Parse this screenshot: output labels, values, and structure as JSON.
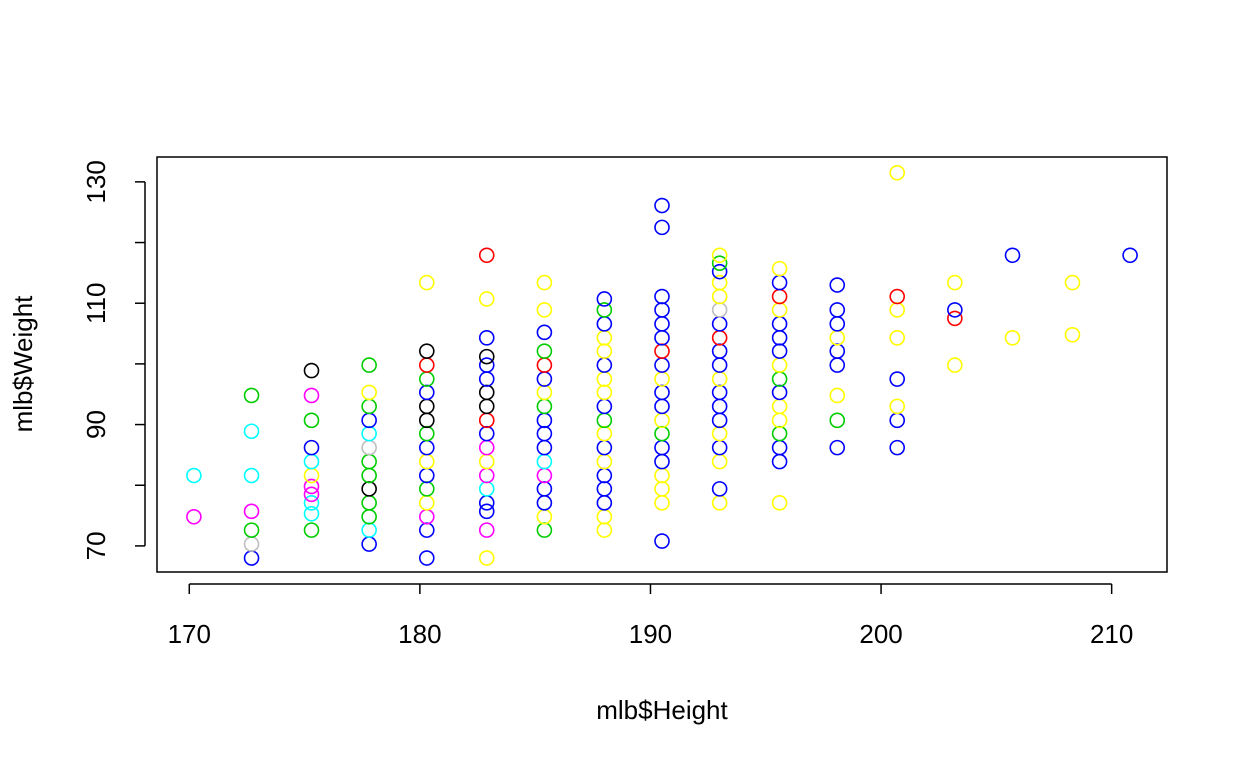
{
  "chart_data": {
    "type": "scatter",
    "title": "",
    "xlabel": "mlb$Height",
    "ylabel": "mlb$Weight",
    "xlim": [
      168.6,
      212.4
    ],
    "ylim": [
      65.7,
      134.1
    ],
    "x_ticks": [
      "170",
      "180",
      "190",
      "200",
      "210"
    ],
    "y_ticks": [
      "70",
      "90",
      "110",
      "130"
    ],
    "y_tick_marks": [
      70,
      80,
      90,
      100,
      110,
      120,
      130
    ],
    "grid": false,
    "legend": "none",
    "colors": {
      "black": "#000000",
      "red": "#ff0000",
      "green": "#00cd00",
      "blue": "#0000ff",
      "cyan": "#00ffff",
      "magenta": "#ff00ff",
      "yellow": "#ffff00",
      "gray": "#bebebe"
    },
    "points": [
      {
        "x": 170.2,
        "y": 74.8,
        "c": "magenta"
      },
      {
        "x": 170.2,
        "y": 81.6,
        "c": "cyan"
      },
      {
        "x": 172.7,
        "y": 68.0,
        "c": "blue"
      },
      {
        "x": 172.7,
        "y": 70.3,
        "c": "gray"
      },
      {
        "x": 172.7,
        "y": 72.6,
        "c": "green"
      },
      {
        "x": 172.7,
        "y": 75.7,
        "c": "magenta"
      },
      {
        "x": 172.7,
        "y": 81.6,
        "c": "cyan"
      },
      {
        "x": 172.7,
        "y": 88.9,
        "c": "cyan"
      },
      {
        "x": 172.7,
        "y": 94.8,
        "c": "green"
      },
      {
        "x": 175.3,
        "y": 72.6,
        "c": "green"
      },
      {
        "x": 175.3,
        "y": 75.3,
        "c": "cyan"
      },
      {
        "x": 175.3,
        "y": 77.1,
        "c": "cyan"
      },
      {
        "x": 175.3,
        "y": 78.5,
        "c": "magenta"
      },
      {
        "x": 175.3,
        "y": 79.8,
        "c": "magenta"
      },
      {
        "x": 175.3,
        "y": 81.6,
        "c": "yellow"
      },
      {
        "x": 175.3,
        "y": 83.9,
        "c": "cyan"
      },
      {
        "x": 175.3,
        "y": 86.2,
        "c": "blue"
      },
      {
        "x": 175.3,
        "y": 90.7,
        "c": "green"
      },
      {
        "x": 175.3,
        "y": 94.8,
        "c": "magenta"
      },
      {
        "x": 175.3,
        "y": 98.9,
        "c": "black"
      },
      {
        "x": 177.8,
        "y": 70.3,
        "c": "blue"
      },
      {
        "x": 177.8,
        "y": 72.6,
        "c": "cyan"
      },
      {
        "x": 177.8,
        "y": 74.8,
        "c": "green"
      },
      {
        "x": 177.8,
        "y": 77.1,
        "c": "green"
      },
      {
        "x": 177.8,
        "y": 79.4,
        "c": "black"
      },
      {
        "x": 177.8,
        "y": 81.6,
        "c": "green"
      },
      {
        "x": 177.8,
        "y": 83.9,
        "c": "green"
      },
      {
        "x": 177.8,
        "y": 86.2,
        "c": "gray"
      },
      {
        "x": 177.8,
        "y": 88.5,
        "c": "cyan"
      },
      {
        "x": 177.8,
        "y": 90.7,
        "c": "blue"
      },
      {
        "x": 177.8,
        "y": 93.0,
        "c": "green"
      },
      {
        "x": 177.8,
        "y": 95.3,
        "c": "yellow"
      },
      {
        "x": 177.8,
        "y": 99.8,
        "c": "green"
      },
      {
        "x": 180.3,
        "y": 68.0,
        "c": "blue"
      },
      {
        "x": 180.3,
        "y": 72.6,
        "c": "blue"
      },
      {
        "x": 180.3,
        "y": 74.8,
        "c": "magenta"
      },
      {
        "x": 180.3,
        "y": 77.1,
        "c": "yellow"
      },
      {
        "x": 180.3,
        "y": 79.4,
        "c": "green"
      },
      {
        "x": 180.3,
        "y": 81.6,
        "c": "blue"
      },
      {
        "x": 180.3,
        "y": 83.9,
        "c": "yellow"
      },
      {
        "x": 180.3,
        "y": 86.2,
        "c": "blue"
      },
      {
        "x": 180.3,
        "y": 88.5,
        "c": "green"
      },
      {
        "x": 180.3,
        "y": 90.7,
        "c": "black"
      },
      {
        "x": 180.3,
        "y": 93.0,
        "c": "black"
      },
      {
        "x": 180.3,
        "y": 95.3,
        "c": "blue"
      },
      {
        "x": 180.3,
        "y": 97.5,
        "c": "green"
      },
      {
        "x": 180.3,
        "y": 99.8,
        "c": "red"
      },
      {
        "x": 180.3,
        "y": 102.1,
        "c": "black"
      },
      {
        "x": 180.3,
        "y": 113.4,
        "c": "yellow"
      },
      {
        "x": 182.9,
        "y": 68.0,
        "c": "yellow"
      },
      {
        "x": 182.9,
        "y": 72.6,
        "c": "magenta"
      },
      {
        "x": 182.9,
        "y": 75.7,
        "c": "blue"
      },
      {
        "x": 182.9,
        "y": 77.1,
        "c": "blue"
      },
      {
        "x": 182.9,
        "y": 79.4,
        "c": "cyan"
      },
      {
        "x": 182.9,
        "y": 81.6,
        "c": "magenta"
      },
      {
        "x": 182.9,
        "y": 83.9,
        "c": "yellow"
      },
      {
        "x": 182.9,
        "y": 86.2,
        "c": "magenta"
      },
      {
        "x": 182.9,
        "y": 88.5,
        "c": "blue"
      },
      {
        "x": 182.9,
        "y": 90.7,
        "c": "red"
      },
      {
        "x": 182.9,
        "y": 93.0,
        "c": "black"
      },
      {
        "x": 182.9,
        "y": 95.3,
        "c": "black"
      },
      {
        "x": 182.9,
        "y": 97.5,
        "c": "blue"
      },
      {
        "x": 182.9,
        "y": 99.8,
        "c": "blue"
      },
      {
        "x": 182.9,
        "y": 101.2,
        "c": "black"
      },
      {
        "x": 182.9,
        "y": 104.3,
        "c": "blue"
      },
      {
        "x": 182.9,
        "y": 110.7,
        "c": "yellow"
      },
      {
        "x": 182.9,
        "y": 117.9,
        "c": "red"
      },
      {
        "x": 185.4,
        "y": 72.6,
        "c": "green"
      },
      {
        "x": 185.4,
        "y": 74.8,
        "c": "yellow"
      },
      {
        "x": 185.4,
        "y": 77.1,
        "c": "blue"
      },
      {
        "x": 185.4,
        "y": 79.4,
        "c": "blue"
      },
      {
        "x": 185.4,
        "y": 81.6,
        "c": "magenta"
      },
      {
        "x": 185.4,
        "y": 83.9,
        "c": "cyan"
      },
      {
        "x": 185.4,
        "y": 86.2,
        "c": "blue"
      },
      {
        "x": 185.4,
        "y": 88.5,
        "c": "blue"
      },
      {
        "x": 185.4,
        "y": 90.7,
        "c": "blue"
      },
      {
        "x": 185.4,
        "y": 93.0,
        "c": "green"
      },
      {
        "x": 185.4,
        "y": 95.3,
        "c": "yellow"
      },
      {
        "x": 185.4,
        "y": 97.5,
        "c": "blue"
      },
      {
        "x": 185.4,
        "y": 99.8,
        "c": "red"
      },
      {
        "x": 185.4,
        "y": 102.1,
        "c": "green"
      },
      {
        "x": 185.4,
        "y": 105.2,
        "c": "blue"
      },
      {
        "x": 185.4,
        "y": 108.9,
        "c": "yellow"
      },
      {
        "x": 185.4,
        "y": 113.4,
        "c": "yellow"
      },
      {
        "x": 188.0,
        "y": 72.6,
        "c": "yellow"
      },
      {
        "x": 188.0,
        "y": 74.8,
        "c": "yellow"
      },
      {
        "x": 188.0,
        "y": 77.1,
        "c": "blue"
      },
      {
        "x": 188.0,
        "y": 79.4,
        "c": "blue"
      },
      {
        "x": 188.0,
        "y": 81.6,
        "c": "blue"
      },
      {
        "x": 188.0,
        "y": 83.9,
        "c": "yellow"
      },
      {
        "x": 188.0,
        "y": 86.2,
        "c": "blue"
      },
      {
        "x": 188.0,
        "y": 88.5,
        "c": "yellow"
      },
      {
        "x": 188.0,
        "y": 90.7,
        "c": "green"
      },
      {
        "x": 188.0,
        "y": 93.0,
        "c": "blue"
      },
      {
        "x": 188.0,
        "y": 95.3,
        "c": "yellow"
      },
      {
        "x": 188.0,
        "y": 97.5,
        "c": "yellow"
      },
      {
        "x": 188.0,
        "y": 99.8,
        "c": "blue"
      },
      {
        "x": 188.0,
        "y": 102.1,
        "c": "yellow"
      },
      {
        "x": 188.0,
        "y": 104.3,
        "c": "yellow"
      },
      {
        "x": 188.0,
        "y": 106.6,
        "c": "blue"
      },
      {
        "x": 188.0,
        "y": 108.9,
        "c": "green"
      },
      {
        "x": 188.0,
        "y": 110.7,
        "c": "blue"
      },
      {
        "x": 190.5,
        "y": 70.8,
        "c": "blue"
      },
      {
        "x": 190.5,
        "y": 77.1,
        "c": "yellow"
      },
      {
        "x": 190.5,
        "y": 79.4,
        "c": "yellow"
      },
      {
        "x": 190.5,
        "y": 81.6,
        "c": "yellow"
      },
      {
        "x": 190.5,
        "y": 83.9,
        "c": "blue"
      },
      {
        "x": 190.5,
        "y": 86.2,
        "c": "blue"
      },
      {
        "x": 190.5,
        "y": 88.5,
        "c": "green"
      },
      {
        "x": 190.5,
        "y": 90.7,
        "c": "yellow"
      },
      {
        "x": 190.5,
        "y": 93.0,
        "c": "blue"
      },
      {
        "x": 190.5,
        "y": 95.3,
        "c": "blue"
      },
      {
        "x": 190.5,
        "y": 97.5,
        "c": "yellow"
      },
      {
        "x": 190.5,
        "y": 99.8,
        "c": "blue"
      },
      {
        "x": 190.5,
        "y": 102.1,
        "c": "red"
      },
      {
        "x": 190.5,
        "y": 104.3,
        "c": "blue"
      },
      {
        "x": 190.5,
        "y": 106.6,
        "c": "blue"
      },
      {
        "x": 190.5,
        "y": 108.9,
        "c": "blue"
      },
      {
        "x": 190.5,
        "y": 111.1,
        "c": "blue"
      },
      {
        "x": 190.5,
        "y": 122.5,
        "c": "blue"
      },
      {
        "x": 190.5,
        "y": 126.1,
        "c": "blue"
      },
      {
        "x": 193.0,
        "y": 77.1,
        "c": "yellow"
      },
      {
        "x": 193.0,
        "y": 79.4,
        "c": "blue"
      },
      {
        "x": 193.0,
        "y": 83.9,
        "c": "yellow"
      },
      {
        "x": 193.0,
        "y": 86.2,
        "c": "blue"
      },
      {
        "x": 193.0,
        "y": 88.5,
        "c": "yellow"
      },
      {
        "x": 193.0,
        "y": 90.7,
        "c": "blue"
      },
      {
        "x": 193.0,
        "y": 93.0,
        "c": "blue"
      },
      {
        "x": 193.0,
        "y": 95.3,
        "c": "blue"
      },
      {
        "x": 193.0,
        "y": 97.5,
        "c": "yellow"
      },
      {
        "x": 193.0,
        "y": 99.8,
        "c": "blue"
      },
      {
        "x": 193.0,
        "y": 102.1,
        "c": "blue"
      },
      {
        "x": 193.0,
        "y": 104.3,
        "c": "red"
      },
      {
        "x": 193.0,
        "y": 106.6,
        "c": "blue"
      },
      {
        "x": 193.0,
        "y": 108.9,
        "c": "gray"
      },
      {
        "x": 193.0,
        "y": 111.1,
        "c": "yellow"
      },
      {
        "x": 193.0,
        "y": 113.4,
        "c": "yellow"
      },
      {
        "x": 193.0,
        "y": 115.2,
        "c": "blue"
      },
      {
        "x": 193.0,
        "y": 116.6,
        "c": "green"
      },
      {
        "x": 193.0,
        "y": 117.9,
        "c": "yellow"
      },
      {
        "x": 195.6,
        "y": 77.1,
        "c": "yellow"
      },
      {
        "x": 195.6,
        "y": 83.9,
        "c": "blue"
      },
      {
        "x": 195.6,
        "y": 86.2,
        "c": "blue"
      },
      {
        "x": 195.6,
        "y": 88.5,
        "c": "green"
      },
      {
        "x": 195.6,
        "y": 90.7,
        "c": "yellow"
      },
      {
        "x": 195.6,
        "y": 93.0,
        "c": "yellow"
      },
      {
        "x": 195.6,
        "y": 95.3,
        "c": "blue"
      },
      {
        "x": 195.6,
        "y": 97.5,
        "c": "green"
      },
      {
        "x": 195.6,
        "y": 99.8,
        "c": "yellow"
      },
      {
        "x": 195.6,
        "y": 102.1,
        "c": "blue"
      },
      {
        "x": 195.6,
        "y": 104.3,
        "c": "blue"
      },
      {
        "x": 195.6,
        "y": 106.6,
        "c": "blue"
      },
      {
        "x": 195.6,
        "y": 108.9,
        "c": "yellow"
      },
      {
        "x": 195.6,
        "y": 111.1,
        "c": "red"
      },
      {
        "x": 195.6,
        "y": 113.4,
        "c": "blue"
      },
      {
        "x": 195.6,
        "y": 115.7,
        "c": "yellow"
      },
      {
        "x": 198.1,
        "y": 86.2,
        "c": "blue"
      },
      {
        "x": 198.1,
        "y": 90.7,
        "c": "green"
      },
      {
        "x": 198.1,
        "y": 94.8,
        "c": "yellow"
      },
      {
        "x": 198.1,
        "y": 99.8,
        "c": "blue"
      },
      {
        "x": 198.1,
        "y": 102.1,
        "c": "blue"
      },
      {
        "x": 198.1,
        "y": 104.3,
        "c": "yellow"
      },
      {
        "x": 198.1,
        "y": 106.6,
        "c": "blue"
      },
      {
        "x": 198.1,
        "y": 108.9,
        "c": "blue"
      },
      {
        "x": 198.1,
        "y": 113.0,
        "c": "blue"
      },
      {
        "x": 200.7,
        "y": 86.2,
        "c": "blue"
      },
      {
        "x": 200.7,
        "y": 90.7,
        "c": "blue"
      },
      {
        "x": 200.7,
        "y": 93.0,
        "c": "yellow"
      },
      {
        "x": 200.7,
        "y": 97.5,
        "c": "blue"
      },
      {
        "x": 200.7,
        "y": 104.3,
        "c": "yellow"
      },
      {
        "x": 200.7,
        "y": 108.9,
        "c": "yellow"
      },
      {
        "x": 200.7,
        "y": 111.1,
        "c": "red"
      },
      {
        "x": 200.7,
        "y": 131.5,
        "c": "yellow"
      },
      {
        "x": 203.2,
        "y": 99.8,
        "c": "yellow"
      },
      {
        "x": 203.2,
        "y": 107.5,
        "c": "red"
      },
      {
        "x": 203.2,
        "y": 108.9,
        "c": "blue"
      },
      {
        "x": 203.2,
        "y": 113.4,
        "c": "yellow"
      },
      {
        "x": 205.7,
        "y": 104.3,
        "c": "yellow"
      },
      {
        "x": 205.7,
        "y": 117.9,
        "c": "blue"
      },
      {
        "x": 208.3,
        "y": 104.8,
        "c": "yellow"
      },
      {
        "x": 208.3,
        "y": 113.4,
        "c": "yellow"
      },
      {
        "x": 210.8,
        "y": 117.9,
        "c": "blue"
      }
    ]
  }
}
